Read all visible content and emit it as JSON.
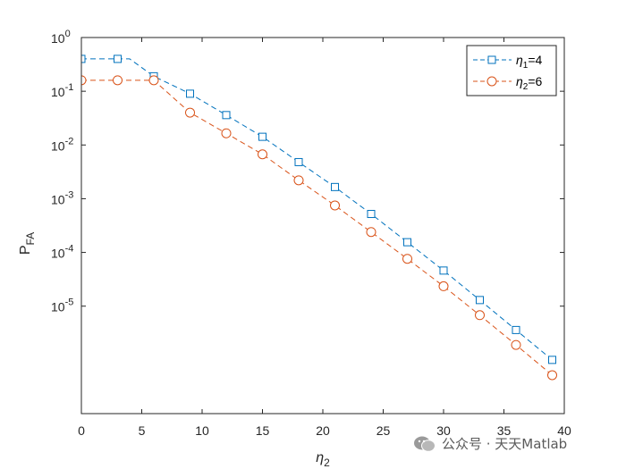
{
  "chart_data": {
    "type": "line",
    "yscale": "log",
    "xlim": [
      0,
      40
    ],
    "ylim": [
      1e-07,
      1
    ],
    "grid": false,
    "legend_position": "top-right",
    "xlabel": {
      "base": "η",
      "sub": "2"
    },
    "ylabel": {
      "base": "P",
      "sub": "FA"
    },
    "x_ticks": [
      "0",
      "5",
      "10",
      "15",
      "20",
      "25",
      "30",
      "35",
      "40"
    ],
    "x_tick_values": [
      0,
      5,
      10,
      15,
      20,
      25,
      30,
      35,
      40
    ],
    "y_ticks": [
      {
        "value": 1,
        "base": "10",
        "exp": "0"
      },
      {
        "value": 0.1,
        "base": "10",
        "exp": "-1"
      },
      {
        "value": 0.01,
        "base": "10",
        "exp": "-2"
      },
      {
        "value": 0.001,
        "base": "10",
        "exp": "-3"
      },
      {
        "value": 0.0001,
        "base": "10",
        "exp": "-4"
      },
      {
        "value": 1e-05,
        "base": "10",
        "exp": "-5"
      }
    ],
    "series": [
      {
        "legend": {
          "base": "η",
          "sub": "1",
          "suffix": "=4"
        },
        "color": "#0072BD",
        "marker": "square",
        "line_x": [
          0,
          4,
          6,
          9,
          12,
          15,
          18,
          21,
          24,
          27,
          30,
          33,
          36,
          39
        ],
        "line_y": [
          0.4,
          0.4,
          0.19,
          0.09,
          0.036,
          0.0142,
          0.0048,
          0.00165,
          0.00052,
          0.000155,
          4.6e-05,
          1.3e-05,
          3.6e-06,
          1e-06
        ],
        "x": [
          0,
          3,
          6,
          9,
          12,
          15,
          18,
          21,
          24,
          27,
          30,
          33,
          36,
          39
        ],
        "y": [
          0.4,
          0.4,
          0.19,
          0.09,
          0.036,
          0.0142,
          0.0048,
          0.00165,
          0.00052,
          0.000155,
          4.6e-05,
          1.3e-05,
          3.6e-06,
          1e-06
        ]
      },
      {
        "legend": {
          "base": "η",
          "sub": "2",
          "suffix": "=6"
        },
        "color": "#D95319",
        "marker": "circle",
        "line_x": [
          0,
          6,
          9,
          12,
          15,
          18,
          21,
          24,
          27,
          30,
          33,
          36,
          39
        ],
        "line_y": [
          0.16,
          0.16,
          0.04,
          0.0165,
          0.0067,
          0.0022,
          0.00075,
          0.00024,
          7.6e-05,
          2.35e-05,
          6.8e-06,
          1.9e-06,
          5.2e-07
        ],
        "x": [
          0,
          3,
          6,
          9,
          12,
          15,
          18,
          21,
          24,
          27,
          30,
          33,
          36,
          39
        ],
        "y": [
          0.16,
          0.16,
          0.16,
          0.04,
          0.0165,
          0.0067,
          0.0022,
          0.00075,
          0.00024,
          7.6e-05,
          2.35e-05,
          6.8e-06,
          1.9e-06,
          5.2e-07
        ]
      }
    ]
  },
  "watermark": {
    "text": "公众号 · 天天Matlab"
  }
}
